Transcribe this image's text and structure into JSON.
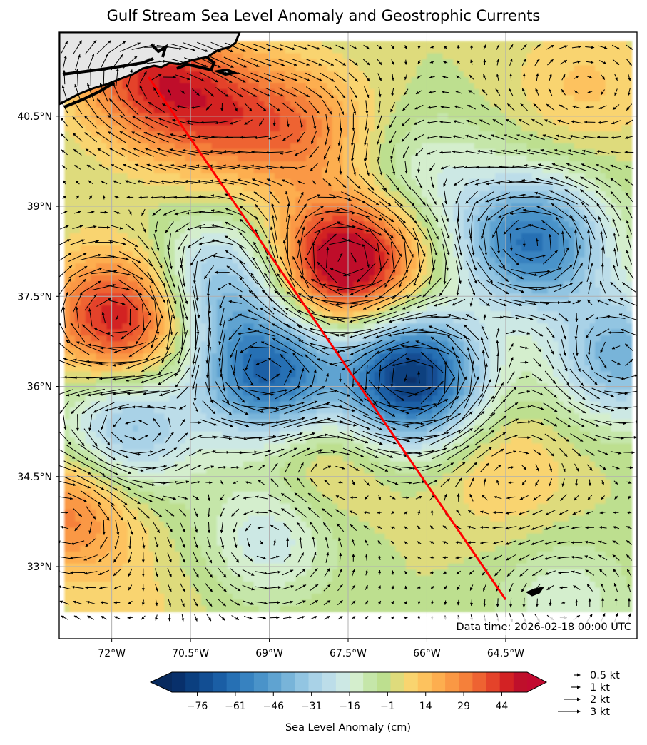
{
  "chart_data": {
    "type": "heatmap",
    "title": "Gulf Stream Sea Level Anomaly and Geostrophic Currents",
    "map_extent": {
      "lon": [
        -73.0,
        -62.0
      ],
      "lat": [
        31.8,
        41.9
      ]
    },
    "x_ticks": [
      -72,
      -70.5,
      -69,
      -67.5,
      -66,
      -64.5
    ],
    "x_tick_labels": [
      "72°W",
      "70.5°W",
      "69°W",
      "67.5°W",
      "66°W",
      "64.5°W"
    ],
    "y_ticks": [
      40.5,
      39,
      37.5,
      36,
      34.5,
      33
    ],
    "y_tick_labels": [
      "40.5°N",
      "39°N",
      "37.5°N",
      "36°N",
      "34.5°N",
      "33°N"
    ],
    "grid": true,
    "colorbar": {
      "label": "Sea Level Anomaly (cm)",
      "extend": "both",
      "levels_range": [
        -86,
        54
      ],
      "level_step": 5,
      "tick_values": [
        -76,
        -61,
        -46,
        -31,
        -16,
        -1,
        14,
        29,
        44
      ],
      "tick_labels": [
        "−76",
        "−61",
        "−46",
        "−31",
        "−16",
        "−1",
        "14",
        "29",
        "44"
      ],
      "colormap": "RdYlBu_r",
      "colors": [
        "#08306b",
        "#0b3f7f",
        "#124e93",
        "#1a5ea5",
        "#2670b4",
        "#3782c0",
        "#4a93c9",
        "#5fa3d1",
        "#78b4d9",
        "#92c5e2",
        "#a9d2e7",
        "#bcdde9",
        "#cce8e4",
        "#d4eecd",
        "#c5e6a9",
        "#bddf8f",
        "#dedb7c",
        "#f9d46f",
        "#fdc25e",
        "#fdae4f",
        "#fa9844",
        "#f5803a",
        "#ee6332",
        "#e4432a",
        "#d32224",
        "#bf0f2b"
      ],
      "over_color": "#c20a30",
      "under_color": "#082a5e"
    },
    "anomaly_features": [
      {
        "lon": -67.55,
        "lat": 38.05,
        "value_cm": 54
      },
      {
        "lon": -71.8,
        "lat": 37.15,
        "value_cm": 42
      },
      {
        "lon": -71.4,
        "lat": 41.2,
        "value_cm": 25
      },
      {
        "lon": -70.2,
        "lat": 40.6,
        "value_cm": 22
      },
      {
        "lon": -68.5,
        "lat": 40.3,
        "value_cm": 20
      },
      {
        "lon": -72.8,
        "lat": 33.9,
        "value_cm": 22
      },
      {
        "lon": -66.3,
        "lat": 36.15,
        "value_cm": -82
      },
      {
        "lon": -64.0,
        "lat": 38.4,
        "value_cm": -62
      },
      {
        "lon": -69.0,
        "lat": 36.2,
        "value_cm": -66
      },
      {
        "lon": -70.0,
        "lat": 37.7,
        "value_cm": -42
      },
      {
        "lon": -71.7,
        "lat": 35.3,
        "value_cm": -40
      },
      {
        "lon": -69.0,
        "lat": 33.5,
        "value_cm": -25
      },
      {
        "lon": -63.4,
        "lat": 32.4,
        "value_cm": -20
      },
      {
        "lon": -62.3,
        "lat": 36.5,
        "value_cm": -45
      },
      {
        "lon": -66.0,
        "lat": 39.5,
        "value_cm": -20
      },
      {
        "lon": -63.0,
        "lat": 41.0,
        "value_cm": 5
      },
      {
        "lon": -68.0,
        "lat": 34.8,
        "value_cm": 5
      },
      {
        "lon": -64.5,
        "lat": 34.6,
        "value_cm": 5
      },
      {
        "lon": -71.5,
        "lat": 32.2,
        "value_cm": 0
      }
    ],
    "transect": {
      "color": "#ff0000",
      "start": [
        -71.3,
        41.15
      ],
      "end": [
        -64.5,
        32.45
      ]
    },
    "quiver_key": {
      "labels": [
        "0.5 kt",
        "1 kt",
        "2 kt",
        "3 kt"
      ],
      "values_kt": [
        0.5,
        1,
        2,
        3
      ]
    },
    "annotation": "Data time: 2026-02-18 00:00 UTC"
  }
}
